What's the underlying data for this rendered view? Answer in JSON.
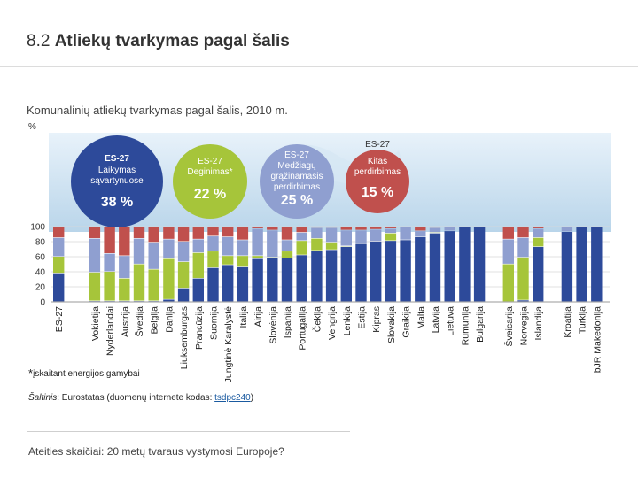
{
  "title_number": "8.2",
  "title_text": "Atliekų tvarkymas pagal šalis",
  "subtitle": "Komunalinių atliekų tvarkymas pagal šalis, 2010 m.",
  "unit": "%",
  "footnote_star": "*",
  "footnote_text": "įskaitant energijos gamybai",
  "source": {
    "label": "Šaltinis",
    "text": ": Eurostatas (duomenų internete kodas: ",
    "code": "tsdpc240",
    "close": ")"
  },
  "footer": "Ateities skaičiai: 20 metų tvaraus vystymosi Europoje?",
  "colors": {
    "landfill": "#2d4a9a",
    "incineration": "#a6c53a",
    "recycling": "#8f9fd0",
    "composting": "#c0504d",
    "sky": "#b9d5ea"
  },
  "chart_data": {
    "type": "bar",
    "stacked": true,
    "ylim": [
      0,
      100
    ],
    "yticks": [
      0,
      20,
      40,
      60,
      80,
      100
    ],
    "categories": [
      "ES-27",
      "Vokietija",
      "Nyderlandai",
      "Austrija",
      "Švedija",
      "Belgija",
      "Danija",
      "Liuksemburgas",
      "Prancūzija",
      "Suomija",
      "Jungtinė Karalystė",
      "Italija",
      "Airija",
      "Slovėnija",
      "Ispanija",
      "Portugalija",
      "Čekija",
      "Vengrija",
      "Lenkija",
      "Estija",
      "Kipras",
      "Slovakija",
      "Graikija",
      "Malta",
      "Latvija",
      "Lietuva",
      "Rumunija",
      "Bulgarija",
      "Šveicarija",
      "Norvegija",
      "Islandija",
      "Kroatija",
      "Turkija",
      "buvusioji Jugoslavijos Respublika Makedonija"
    ],
    "category_labels": [
      "ES-27",
      "Vokietija",
      "Nyderlandai",
      "Austrija",
      "Švedija",
      "Belgija",
      "Danija",
      "Liuksemburgas",
      "Prancūzija",
      "Suomija",
      "Jungtinė Karalystė",
      "Italija",
      "Airija",
      "Slovėnija",
      "Ispanija",
      "Portugalija",
      "Čekija",
      "Vengrija",
      "Lenkija",
      "Estija",
      "Kipras",
      "Slovakija",
      "Graikija",
      "Malta",
      "Latvija",
      "Lietuva",
      "Rumunija",
      "Bulgarija",
      "Šveicarija",
      "Norvegija",
      "Islandija",
      "Kroatija",
      "Turkija",
      "bJR Makedonija"
    ],
    "series": [
      {
        "name": "Laikymas sąvartynuose",
        "values": [
          38,
          1,
          1,
          1,
          1,
          1,
          3,
          18,
          31,
          45,
          49,
          46,
          57,
          58,
          58,
          62,
          68,
          69,
          73,
          77,
          80,
          81,
          82,
          86,
          91,
          94,
          99,
          100,
          0,
          2,
          73,
          93,
          99,
          100
        ]
      },
      {
        "name": "Deginimas*",
        "values": [
          22,
          38,
          39,
          30,
          49,
          42,
          54,
          35,
          34,
          22,
          12,
          15,
          4,
          1,
          9,
          19,
          16,
          10,
          1,
          0,
          0,
          10,
          0,
          0,
          1,
          0,
          0,
          0,
          50,
          57,
          12,
          0,
          0,
          0
        ]
      },
      {
        "name": "Medžiagų grąžinamasis perdirbimas",
        "values": [
          25,
          45,
          24,
          30,
          34,
          36,
          26,
          27,
          18,
          20,
          25,
          21,
          36,
          36,
          15,
          11,
          14,
          19,
          21,
          18,
          16,
          6,
          17,
          8,
          6,
          5,
          1,
          0,
          33,
          26,
          12,
          6,
          1,
          0
        ]
      },
      {
        "name": "Kitas perdirbimas",
        "values": [
          15,
          16,
          36,
          39,
          16,
          21,
          17,
          20,
          17,
          13,
          14,
          18,
          3,
          5,
          18,
          8,
          2,
          2,
          5,
          5,
          4,
          3,
          1,
          6,
          2,
          1,
          0,
          0,
          17,
          15,
          3,
          1,
          0,
          0
        ]
      }
    ],
    "callouts": [
      {
        "region": "ES-27",
        "label": "Laikymas sąvartynuose",
        "value": "38 %",
        "color": "#2d4a9a"
      },
      {
        "region": "ES-27",
        "label": "Deginimas*",
        "value": "22 %",
        "color": "#a6c53a"
      },
      {
        "region": "ES-27",
        "label": "Medžiagų grąžinamasis perdirbimas",
        "value": "25 %",
        "color": "#8f9fd0"
      },
      {
        "region": "ES-27",
        "label": "Kitas perdirbimas",
        "value": "15 %",
        "color": "#c0504d"
      }
    ]
  }
}
